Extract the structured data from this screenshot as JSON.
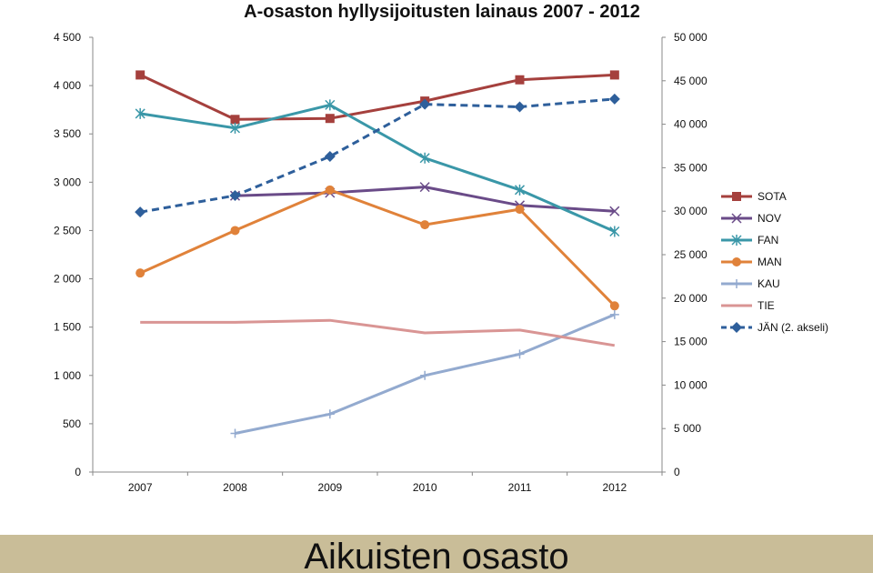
{
  "chart_data": {
    "type": "line",
    "title": "A-osaston hyllysijoitusten lainaus 2007 - 2012",
    "categories": [
      "2007",
      "2008",
      "2009",
      "2010",
      "2011",
      "2012"
    ],
    "y_left": {
      "ylim": [
        0,
        4500
      ],
      "ticks": [
        0,
        500,
        1000,
        1500,
        2000,
        2500,
        3000,
        3500,
        4000,
        4500
      ],
      "tick_labels": [
        "0",
        "500",
        "1 000",
        "1 500",
        "2 000",
        "2 500",
        "3 000",
        "3 500",
        "4 000",
        "4 500"
      ]
    },
    "y_right": {
      "ylim": [
        0,
        50000
      ],
      "ticks": [
        0,
        5000,
        10000,
        15000,
        20000,
        25000,
        30000,
        35000,
        40000,
        45000,
        50000
      ],
      "tick_labels": [
        "0",
        "5 000",
        "10 000",
        "15 000",
        "20 000",
        "25 000",
        "30 000",
        "35 000",
        "40 000",
        "45 000",
        "50 000"
      ]
    },
    "series": [
      {
        "name": "SOTA",
        "axis": "left",
        "color": "#a5403d",
        "marker": "square",
        "dashed": false,
        "values": [
          4110,
          3650,
          3660,
          3840,
          4060,
          4110
        ]
      },
      {
        "name": "NOV",
        "axis": "left",
        "color": "#6a4b88",
        "marker": "x",
        "dashed": false,
        "values": [
          null,
          2860,
          2890,
          2950,
          2760,
          2700
        ]
      },
      {
        "name": "FAN",
        "axis": "left",
        "color": "#3a97a8",
        "marker": "star",
        "dashed": false,
        "values": [
          3710,
          3560,
          3800,
          3250,
          2920,
          2490
        ]
      },
      {
        "name": "MAN",
        "axis": "left",
        "color": "#e0823a",
        "marker": "circle",
        "dashed": false,
        "values": [
          2060,
          2500,
          2920,
          2560,
          2720,
          1720
        ]
      },
      {
        "name": "KAU",
        "axis": "left",
        "color": "#93aacf",
        "marker": "plus",
        "dashed": false,
        "values": [
          null,
          400,
          600,
          1000,
          1220,
          1630
        ]
      },
      {
        "name": "TIE",
        "axis": "left",
        "color": "#d99594",
        "marker": "none",
        "dashed": false,
        "values": [
          1550,
          1550,
          1570,
          1440,
          1470,
          1310
        ]
      },
      {
        "name": "JÄN (2. akseli)",
        "axis": "right",
        "color": "#2e5f9b",
        "marker": "diamond",
        "dashed": true,
        "values": [
          29900,
          31800,
          36300,
          42300,
          42000,
          42900
        ]
      }
    ],
    "grid": false,
    "legend_position": "right"
  },
  "footer": {
    "banner_text": "Aikuisten osasto"
  }
}
